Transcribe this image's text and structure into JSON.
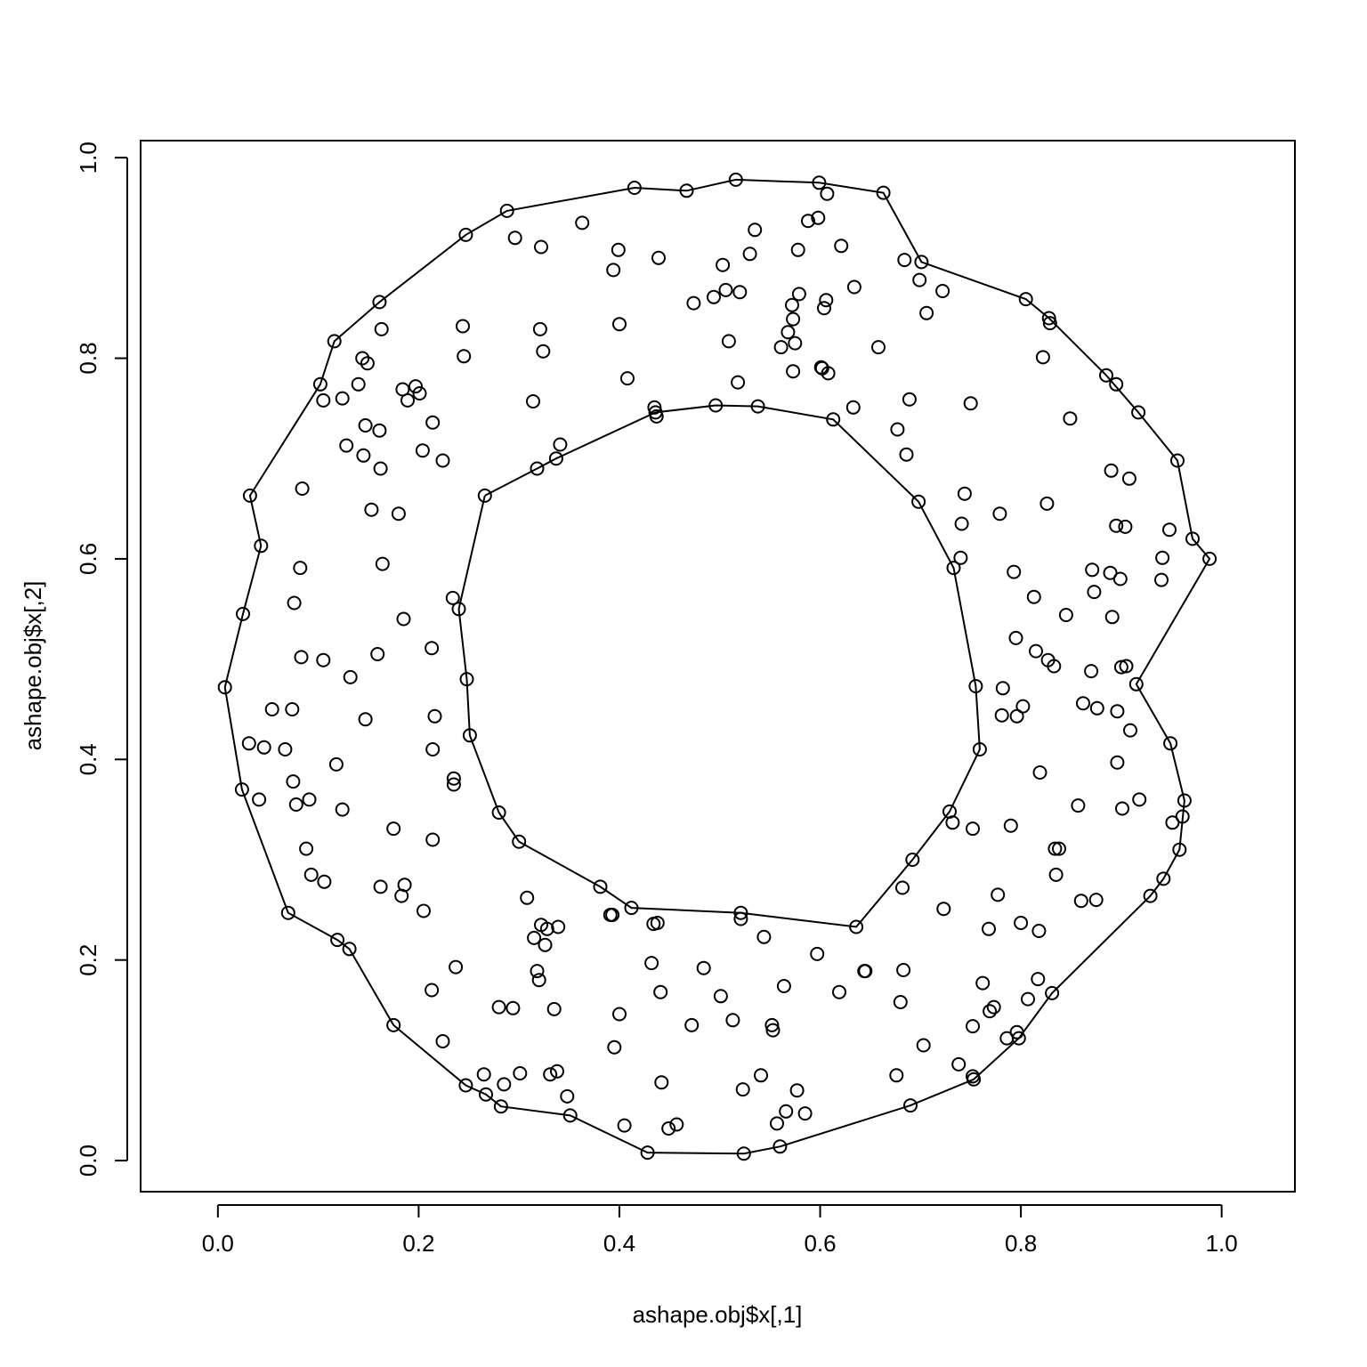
{
  "chart_data": {
    "type": "scatter",
    "title": "",
    "xlabel": "ashape.obj$x[,1]",
    "ylabel": "ashape.obj$x[,2]",
    "xlim": [
      -0.077,
      1.073
    ],
    "ylim": [
      -0.031,
      1.017
    ],
    "x_ticks": [
      "0.0",
      "0.2",
      "0.4",
      "0.6",
      "0.8",
      "1.0"
    ],
    "y_ticks": [
      "0.0",
      "0.2",
      "0.4",
      "0.6",
      "0.8",
      "1.0"
    ],
    "grid": false,
    "legend": "none",
    "points": [
      [
        0.007,
        0.472
      ],
      [
        0.024,
        0.37
      ],
      [
        0.025,
        0.545
      ],
      [
        0.032,
        0.663
      ],
      [
        0.043,
        0.613
      ],
      [
        0.031,
        0.416
      ],
      [
        0.041,
        0.36
      ],
      [
        0.046,
        0.412
      ],
      [
        0.054,
        0.45
      ],
      [
        0.067,
        0.41
      ],
      [
        0.07,
        0.247
      ],
      [
        0.074,
        0.45
      ],
      [
        0.075,
        0.378
      ],
      [
        0.076,
        0.556
      ],
      [
        0.078,
        0.355
      ],
      [
        0.082,
        0.591
      ],
      [
        0.083,
        0.502
      ],
      [
        0.084,
        0.67
      ],
      [
        0.088,
        0.311
      ],
      [
        0.091,
        0.36
      ],
      [
        0.093,
        0.285
      ],
      [
        0.102,
        0.774
      ],
      [
        0.105,
        0.758
      ],
      [
        0.105,
        0.499
      ],
      [
        0.106,
        0.278
      ],
      [
        0.116,
        0.817
      ],
      [
        0.118,
        0.395
      ],
      [
        0.119,
        0.22
      ],
      [
        0.124,
        0.76
      ],
      [
        0.124,
        0.35
      ],
      [
        0.128,
        0.713
      ],
      [
        0.131,
        0.211
      ],
      [
        0.132,
        0.482
      ],
      [
        0.14,
        0.774
      ],
      [
        0.144,
        0.8
      ],
      [
        0.145,
        0.703
      ],
      [
        0.147,
        0.733
      ],
      [
        0.147,
        0.44
      ],
      [
        0.149,
        0.795
      ],
      [
        0.153,
        0.649
      ],
      [
        0.159,
        0.505
      ],
      [
        0.161,
        0.728
      ],
      [
        0.161,
        0.856
      ],
      [
        0.162,
        0.69
      ],
      [
        0.162,
        0.273
      ],
      [
        0.163,
        0.829
      ],
      [
        0.164,
        0.595
      ],
      [
        0.175,
        0.331
      ],
      [
        0.175,
        0.135
      ],
      [
        0.18,
        0.645
      ],
      [
        0.183,
        0.264
      ],
      [
        0.184,
        0.769
      ],
      [
        0.185,
        0.54
      ],
      [
        0.186,
        0.275
      ],
      [
        0.189,
        0.758
      ],
      [
        0.197,
        0.772
      ],
      [
        0.201,
        0.765
      ],
      [
        0.204,
        0.708
      ],
      [
        0.205,
        0.249
      ],
      [
        0.213,
        0.511
      ],
      [
        0.213,
        0.17
      ],
      [
        0.214,
        0.736
      ],
      [
        0.214,
        0.41
      ],
      [
        0.214,
        0.32
      ],
      [
        0.216,
        0.443
      ],
      [
        0.224,
        0.698
      ],
      [
        0.224,
        0.119
      ],
      [
        0.234,
        0.561
      ],
      [
        0.235,
        0.381
      ],
      [
        0.235,
        0.375
      ],
      [
        0.237,
        0.193
      ],
      [
        0.24,
        0.55
      ],
      [
        0.244,
        0.832
      ],
      [
        0.245,
        0.802
      ],
      [
        0.247,
        0.923
      ],
      [
        0.247,
        0.075
      ],
      [
        0.248,
        0.48
      ],
      [
        0.251,
        0.424
      ],
      [
        0.265,
        0.086
      ],
      [
        0.266,
        0.663
      ],
      [
        0.267,
        0.066
      ],
      [
        0.28,
        0.347
      ],
      [
        0.28,
        0.153
      ],
      [
        0.282,
        0.054
      ],
      [
        0.285,
        0.076
      ],
      [
        0.288,
        0.947
      ],
      [
        0.294,
        0.152
      ],
      [
        0.296,
        0.92
      ],
      [
        0.3,
        0.318
      ],
      [
        0.301,
        0.087
      ],
      [
        0.308,
        0.262
      ],
      [
        0.314,
        0.757
      ],
      [
        0.315,
        0.222
      ],
      [
        0.318,
        0.69
      ],
      [
        0.318,
        0.189
      ],
      [
        0.32,
        0.18
      ],
      [
        0.321,
        0.829
      ],
      [
        0.322,
        0.911
      ],
      [
        0.322,
        0.235
      ],
      [
        0.324,
        0.807
      ],
      [
        0.326,
        0.215
      ],
      [
        0.328,
        0.231
      ],
      [
        0.331,
        0.086
      ],
      [
        0.335,
        0.151
      ],
      [
        0.337,
        0.7
      ],
      [
        0.338,
        0.089
      ],
      [
        0.339,
        0.233
      ],
      [
        0.341,
        0.714
      ],
      [
        0.348,
        0.064
      ],
      [
        0.351,
        0.045
      ],
      [
        0.363,
        0.935
      ],
      [
        0.381,
        0.273
      ],
      [
        0.391,
        0.245
      ],
      [
        0.393,
        0.245
      ],
      [
        0.394,
        0.888
      ],
      [
        0.395,
        0.113
      ],
      [
        0.399,
        0.908
      ],
      [
        0.4,
        0.146
      ],
      [
        0.4,
        0.834
      ],
      [
        0.405,
        0.035
      ],
      [
        0.408,
        0.78
      ],
      [
        0.412,
        0.252
      ],
      [
        0.415,
        0.97
      ],
      [
        0.428,
        0.008
      ],
      [
        0.432,
        0.197
      ],
      [
        0.434,
        0.236
      ],
      [
        0.435,
        0.751
      ],
      [
        0.436,
        0.746
      ],
      [
        0.437,
        0.742
      ],
      [
        0.438,
        0.237
      ],
      [
        0.439,
        0.9
      ],
      [
        0.441,
        0.168
      ],
      [
        0.442,
        0.078
      ],
      [
        0.449,
        0.032
      ],
      [
        0.457,
        0.036
      ],
      [
        0.467,
        0.967
      ],
      [
        0.472,
        0.135
      ],
      [
        0.474,
        0.855
      ],
      [
        0.484,
        0.192
      ],
      [
        0.494,
        0.861
      ],
      [
        0.496,
        0.753
      ],
      [
        0.501,
        0.164
      ],
      [
        0.503,
        0.893
      ],
      [
        0.506,
        0.868
      ],
      [
        0.509,
        0.817
      ],
      [
        0.513,
        0.14
      ],
      [
        0.516,
        0.978
      ],
      [
        0.518,
        0.776
      ],
      [
        0.52,
        0.866
      ],
      [
        0.521,
        0.247
      ],
      [
        0.521,
        0.241
      ],
      [
        0.523,
        0.071
      ],
      [
        0.524,
        0.007
      ],
      [
        0.53,
        0.904
      ],
      [
        0.535,
        0.928
      ],
      [
        0.538,
        0.752
      ],
      [
        0.541,
        0.085
      ],
      [
        0.544,
        0.223
      ],
      [
        0.552,
        0.135
      ],
      [
        0.553,
        0.13
      ],
      [
        0.557,
        0.037
      ],
      [
        0.56,
        0.014
      ],
      [
        0.561,
        0.811
      ],
      [
        0.564,
        0.174
      ],
      [
        0.566,
        0.049
      ],
      [
        0.568,
        0.826
      ],
      [
        0.572,
        0.853
      ],
      [
        0.573,
        0.839
      ],
      [
        0.573,
        0.787
      ],
      [
        0.575,
        0.815
      ],
      [
        0.577,
        0.07
      ],
      [
        0.578,
        0.908
      ],
      [
        0.579,
        0.864
      ],
      [
        0.585,
        0.047
      ],
      [
        0.588,
        0.937
      ],
      [
        0.597,
        0.206
      ],
      [
        0.598,
        0.94
      ],
      [
        0.599,
        0.975
      ],
      [
        0.601,
        0.791
      ],
      [
        0.602,
        0.79
      ],
      [
        0.604,
        0.85
      ],
      [
        0.606,
        0.858
      ],
      [
        0.607,
        0.964
      ],
      [
        0.608,
        0.785
      ],
      [
        0.613,
        0.739
      ],
      [
        0.619,
        0.168
      ],
      [
        0.621,
        0.912
      ],
      [
        0.633,
        0.751
      ],
      [
        0.634,
        0.871
      ],
      [
        0.636,
        0.233
      ],
      [
        0.644,
        0.189
      ],
      [
        0.645,
        0.189
      ],
      [
        0.658,
        0.811
      ],
      [
        0.663,
        0.965
      ],
      [
        0.676,
        0.085
      ],
      [
        0.677,
        0.729
      ],
      [
        0.68,
        0.158
      ],
      [
        0.682,
        0.272
      ],
      [
        0.683,
        0.19
      ],
      [
        0.684,
        0.898
      ],
      [
        0.686,
        0.704
      ],
      [
        0.689,
        0.759
      ],
      [
        0.69,
        0.055
      ],
      [
        0.692,
        0.3
      ],
      [
        0.698,
        0.657
      ],
      [
        0.699,
        0.878
      ],
      [
        0.701,
        0.896
      ],
      [
        0.703,
        0.115
      ],
      [
        0.706,
        0.845
      ],
      [
        0.722,
        0.867
      ],
      [
        0.723,
        0.251
      ],
      [
        0.729,
        0.348
      ],
      [
        0.732,
        0.337
      ],
      [
        0.733,
        0.591
      ],
      [
        0.738,
        0.096
      ],
      [
        0.74,
        0.601
      ],
      [
        0.741,
        0.635
      ],
      [
        0.744,
        0.665
      ],
      [
        0.75,
        0.755
      ],
      [
        0.752,
        0.084
      ],
      [
        0.752,
        0.134
      ],
      [
        0.752,
        0.331
      ],
      [
        0.753,
        0.081
      ],
      [
        0.755,
        0.473
      ],
      [
        0.759,
        0.41
      ],
      [
        0.762,
        0.177
      ],
      [
        0.768,
        0.231
      ],
      [
        0.769,
        0.149
      ],
      [
        0.773,
        0.153
      ],
      [
        0.777,
        0.265
      ],
      [
        0.779,
        0.645
      ],
      [
        0.781,
        0.444
      ],
      [
        0.782,
        0.471
      ],
      [
        0.786,
        0.122
      ],
      [
        0.79,
        0.334
      ],
      [
        0.793,
        0.587
      ],
      [
        0.795,
        0.521
      ],
      [
        0.796,
        0.443
      ],
      [
        0.796,
        0.128
      ],
      [
        0.798,
        0.122
      ],
      [
        0.8,
        0.237
      ],
      [
        0.802,
        0.453
      ],
      [
        0.805,
        0.859
      ],
      [
        0.807,
        0.161
      ],
      [
        0.813,
        0.562
      ],
      [
        0.815,
        0.508
      ],
      [
        0.817,
        0.181
      ],
      [
        0.818,
        0.229
      ],
      [
        0.819,
        0.387
      ],
      [
        0.822,
        0.801
      ],
      [
        0.826,
        0.655
      ],
      [
        0.827,
        0.499
      ],
      [
        0.828,
        0.84
      ],
      [
        0.829,
        0.835
      ],
      [
        0.831,
        0.167
      ],
      [
        0.833,
        0.493
      ],
      [
        0.834,
        0.311
      ],
      [
        0.835,
        0.285
      ],
      [
        0.838,
        0.311
      ],
      [
        0.845,
        0.544
      ],
      [
        0.849,
        0.74
      ],
      [
        0.857,
        0.354
      ],
      [
        0.86,
        0.259
      ],
      [
        0.862,
        0.456
      ],
      [
        0.87,
        0.488
      ],
      [
        0.871,
        0.589
      ],
      [
        0.873,
        0.567
      ],
      [
        0.875,
        0.26
      ],
      [
        0.876,
        0.451
      ],
      [
        0.885,
        0.783
      ],
      [
        0.889,
        0.586
      ],
      [
        0.89,
        0.688
      ],
      [
        0.891,
        0.542
      ],
      [
        0.895,
        0.774
      ],
      [
        0.895,
        0.633
      ],
      [
        0.896,
        0.448
      ],
      [
        0.896,
        0.397
      ],
      [
        0.899,
        0.58
      ],
      [
        0.9,
        0.492
      ],
      [
        0.901,
        0.351
      ],
      [
        0.904,
        0.632
      ],
      [
        0.905,
        0.493
      ],
      [
        0.908,
        0.68
      ],
      [
        0.909,
        0.429
      ],
      [
        0.915,
        0.475
      ],
      [
        0.917,
        0.746
      ],
      [
        0.918,
        0.36
      ],
      [
        0.929,
        0.264
      ],
      [
        0.94,
        0.579
      ],
      [
        0.941,
        0.601
      ],
      [
        0.942,
        0.281
      ],
      [
        0.948,
        0.629
      ],
      [
        0.949,
        0.416
      ],
      [
        0.951,
        0.337
      ],
      [
        0.956,
        0.698
      ],
      [
        0.958,
        0.31
      ],
      [
        0.961,
        0.343
      ],
      [
        0.963,
        0.359
      ],
      [
        0.971,
        0.62
      ],
      [
        0.988,
        0.6
      ]
    ],
    "outer_boundary": [
      [
        0.007,
        0.472
      ],
      [
        0.025,
        0.545
      ],
      [
        0.043,
        0.613
      ],
      [
        0.032,
        0.663
      ],
      [
        0.102,
        0.774
      ],
      [
        0.116,
        0.817
      ],
      [
        0.161,
        0.856
      ],
      [
        0.247,
        0.923
      ],
      [
        0.288,
        0.947
      ],
      [
        0.415,
        0.97
      ],
      [
        0.467,
        0.967
      ],
      [
        0.516,
        0.978
      ],
      [
        0.599,
        0.975
      ],
      [
        0.663,
        0.965
      ],
      [
        0.701,
        0.896
      ],
      [
        0.805,
        0.859
      ],
      [
        0.828,
        0.84
      ],
      [
        0.885,
        0.783
      ],
      [
        0.917,
        0.746
      ],
      [
        0.956,
        0.698
      ],
      [
        0.971,
        0.62
      ],
      [
        0.988,
        0.6
      ],
      [
        0.915,
        0.475
      ],
      [
        0.949,
        0.416
      ],
      [
        0.963,
        0.359
      ],
      [
        0.958,
        0.31
      ],
      [
        0.942,
        0.281
      ],
      [
        0.929,
        0.264
      ],
      [
        0.831,
        0.167
      ],
      [
        0.798,
        0.122
      ],
      [
        0.753,
        0.081
      ],
      [
        0.69,
        0.055
      ],
      [
        0.56,
        0.014
      ],
      [
        0.524,
        0.007
      ],
      [
        0.428,
        0.008
      ],
      [
        0.351,
        0.045
      ],
      [
        0.282,
        0.054
      ],
      [
        0.267,
        0.066
      ],
      [
        0.247,
        0.075
      ],
      [
        0.175,
        0.135
      ],
      [
        0.131,
        0.211
      ],
      [
        0.119,
        0.22
      ],
      [
        0.07,
        0.247
      ],
      [
        0.024,
        0.37
      ],
      [
        0.007,
        0.472
      ]
    ],
    "inner_boundary": [
      [
        0.266,
        0.663
      ],
      [
        0.318,
        0.69
      ],
      [
        0.337,
        0.7
      ],
      [
        0.436,
        0.746
      ],
      [
        0.496,
        0.753
      ],
      [
        0.538,
        0.752
      ],
      [
        0.613,
        0.739
      ],
      [
        0.698,
        0.657
      ],
      [
        0.733,
        0.591
      ],
      [
        0.755,
        0.473
      ],
      [
        0.759,
        0.41
      ],
      [
        0.729,
        0.348
      ],
      [
        0.692,
        0.3
      ],
      [
        0.636,
        0.233
      ],
      [
        0.521,
        0.247
      ],
      [
        0.412,
        0.252
      ],
      [
        0.381,
        0.273
      ],
      [
        0.3,
        0.318
      ],
      [
        0.28,
        0.347
      ],
      [
        0.251,
        0.424
      ],
      [
        0.248,
        0.48
      ],
      [
        0.24,
        0.55
      ],
      [
        0.266,
        0.663
      ]
    ]
  }
}
